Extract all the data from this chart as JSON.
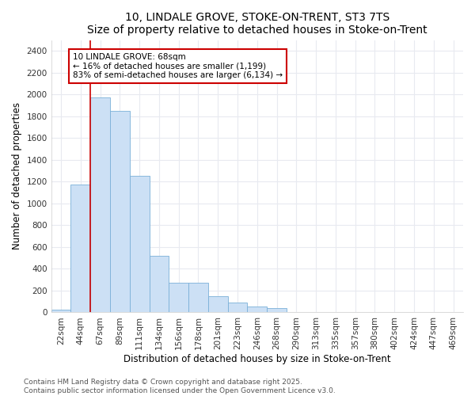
{
  "title": "10, LINDALE GROVE, STOKE-ON-TRENT, ST3 7TS",
  "subtitle": "Size of property relative to detached houses in Stoke-on-Trent",
  "xlabel": "Distribution of detached houses by size in Stoke-on-Trent",
  "ylabel": "Number of detached properties",
  "bar_color": "#cce0f5",
  "bar_edge_color": "#7ab0d8",
  "categories": [
    "22sqm",
    "44sqm",
    "67sqm",
    "89sqm",
    "111sqm",
    "134sqm",
    "156sqm",
    "178sqm",
    "201sqm",
    "223sqm",
    "246sqm",
    "268sqm",
    "290sqm",
    "313sqm",
    "335sqm",
    "357sqm",
    "380sqm",
    "402sqm",
    "424sqm",
    "447sqm",
    "469sqm"
  ],
  "values": [
    25,
    1175,
    1975,
    1850,
    1250,
    520,
    275,
    275,
    150,
    90,
    55,
    40,
    0,
    0,
    0,
    0,
    0,
    0,
    0,
    0,
    0
  ],
  "ylim": [
    0,
    2500
  ],
  "yticks": [
    0,
    200,
    400,
    600,
    800,
    1000,
    1200,
    1400,
    1600,
    1800,
    2000,
    2200,
    2400
  ],
  "vline_color": "#cc0000",
  "annotation_text": "10 LINDALE GROVE: 68sqm\n← 16% of detached houses are smaller (1,199)\n83% of semi-detached houses are larger (6,134) →",
  "annotation_box_edge": "#cc0000",
  "bg_color": "#ffffff",
  "grid_color": "#e8eaf0",
  "footer1": "Contains HM Land Registry data © Crown copyright and database right 2025.",
  "footer2": "Contains public sector information licensed under the Open Government Licence v3.0.",
  "title_fontsize": 10,
  "subtitle_fontsize": 9,
  "axis_label_fontsize": 8.5,
  "tick_fontsize": 7.5,
  "footer_fontsize": 6.5
}
